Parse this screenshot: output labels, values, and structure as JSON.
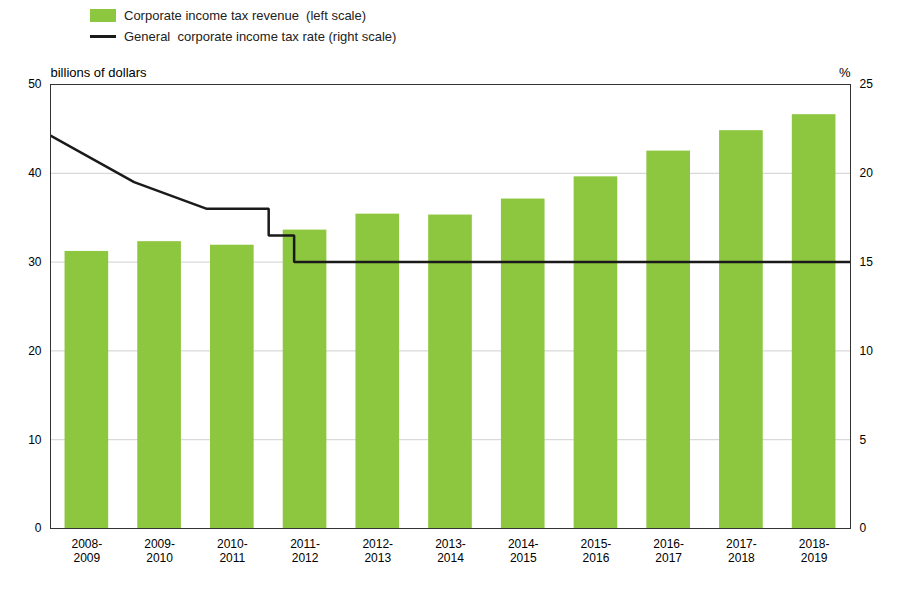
{
  "chart_data": {
    "type": "bar",
    "categories": [
      "2008-\n2009",
      "2009-\n2010",
      "2010-\n2011",
      "2011-\n2012",
      "2012-\n2013",
      "2013-\n2014",
      "2014-\n2015",
      "2015-\n2016",
      "2016-\n2017",
      "2017-\n2018",
      "2018-\n2019"
    ],
    "ylabel": "billions of dollars",
    "y2label": "%",
    "ylim": [
      0,
      50
    ],
    "yticks": [
      0,
      10,
      20,
      30,
      40,
      50
    ],
    "y2lim": [
      0,
      25
    ],
    "y2ticks": [
      0,
      5,
      10,
      15,
      20,
      25
    ],
    "grid": true,
    "legend": "upper left",
    "series": [
      {
        "name": "Corporate income tax revenue  (left scale)",
        "type": "bar",
        "color": "#8dc63f",
        "values": [
          31.2,
          32.3,
          31.9,
          33.6,
          35.4,
          35.3,
          37.1,
          39.6,
          42.5,
          44.8,
          46.6
        ]
      },
      {
        "name": "General  corporate income tax rate (right scale)",
        "type": "line",
        "axis": "y2",
        "color": "#1a1a1a",
        "x": [
          -0.5,
          -0.5,
          0.65,
          0.65,
          1.65,
          1.65,
          2.5,
          2.5,
          2.85,
          2.85,
          10.5
        ],
        "values": [
          22.12,
          22.12,
          19.5,
          19.5,
          18.0,
          18.0,
          18.0,
          16.5,
          16.5,
          15.0,
          15.0
        ]
      }
    ]
  }
}
